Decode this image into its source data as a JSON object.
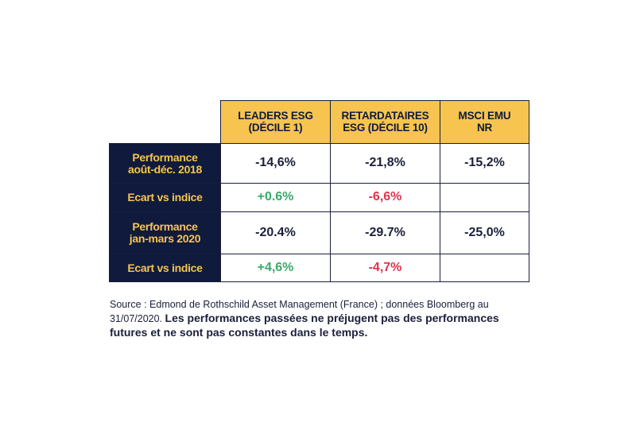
{
  "table": {
    "headers": [
      "LEADERS ESG\n(DÉCILE 1)",
      "RETARDATAIRES\nESG (DÉCILE 10)",
      "MSCI EMU\nNR"
    ],
    "rows": [
      {
        "label": "Performance\naoût-déc. 2018",
        "values": [
          "-14,6%",
          "-21,8%",
          "-15,2%"
        ]
      },
      {
        "label": "Ecart vs indice",
        "values": [
          "+0.6%",
          "-6,6%",
          ""
        ]
      },
      {
        "label": "Performance\njan-mars 2020",
        "values": [
          "-20.4%",
          "-29.7%",
          "-25,0%"
        ]
      },
      {
        "label": "Ecart vs indice",
        "values": [
          "+4,6%",
          "-4,7%",
          ""
        ]
      }
    ]
  },
  "source": {
    "prefix": "Source : Edmond de Rothschild Asset Management (France) ; données Bloomberg au 31/07/2020. ",
    "bold": "Les performances passées ne préjugent pas des performances futures et ne sont pas constantes dans le temps."
  },
  "colors": {
    "gold": "#f6c44f",
    "navy": "#0f1a3c",
    "positive": "#3aaa6a",
    "negative": "#e0334d"
  }
}
